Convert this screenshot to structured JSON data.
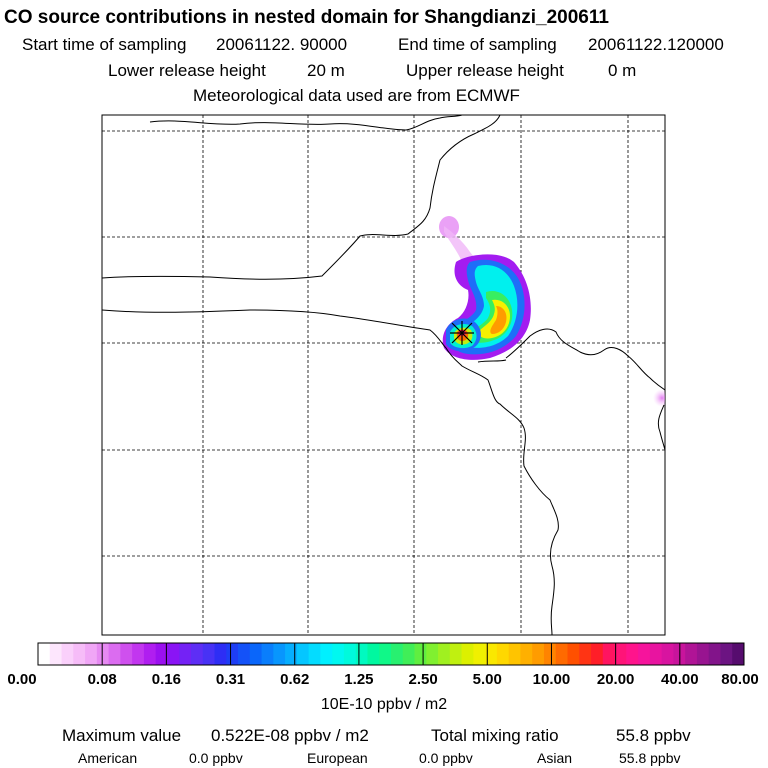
{
  "title": "CO  source contributions in nested domain for Shangdianzi_200611",
  "header": {
    "start_label": "Start time of sampling",
    "start_value": "20061122. 90000",
    "end_label": "End time of sampling",
    "end_value": "20061122.120000",
    "lower_label": "Lower release height",
    "lower_value": "20 m",
    "upper_label": "Upper release height",
    "upper_value": "0 m",
    "met_text": "Meteorological data used are from ECMWF"
  },
  "colorbar": {
    "ticks": [
      "0.00",
      "0.08",
      "0.16",
      "0.31",
      "0.62",
      "1.25",
      "2.50",
      "5.00",
      "10.00",
      "20.00",
      "40.00",
      "80.00"
    ],
    "units": "10E-10 ppbv / m2",
    "colors": [
      "#ffffff",
      "#fde6fd",
      "#fad0fb",
      "#f6bcf8",
      "#f0a6f6",
      "#e68af2",
      "#db6cf0",
      "#cf50ee",
      "#c236ef",
      "#b01ef0",
      "#9b10f0",
      "#8a14f5",
      "#7422f5",
      "#5e2ef5",
      "#4832f5",
      "#2e2ef5",
      "#1e3ef5",
      "#1452f8",
      "#0a66fa",
      "#0a7efc",
      "#0896fd",
      "#06aefe",
      "#05c6ff",
      "#04dcff",
      "#00f0ff",
      "#00f8f0",
      "#00fadc",
      "#00fac0",
      "#00f8a0",
      "#10f888",
      "#28f070",
      "#40ee58",
      "#60ee40",
      "#80f030",
      "#a0f020",
      "#c0f010",
      "#dcf000",
      "#f0f000",
      "#fae800",
      "#ffd800",
      "#ffc400",
      "#ffb000",
      "#ff9c00",
      "#ff8400",
      "#ff6a00",
      "#ff5000",
      "#ff3414",
      "#ff1e28",
      "#ff1460",
      "#ff1478",
      "#ff148c",
      "#f6149c",
      "#e814a0",
      "#d814a0",
      "#c8149c",
      "#b01496",
      "#981490",
      "#82148a",
      "#6c1482",
      "#560c6e"
    ]
  },
  "footer": {
    "max_label": "Maximum value",
    "max_value": "0.522E-08 ppbv / m2",
    "total_label": "Total mixing ratio",
    "total_value": "55.8 ppbv",
    "american_label": "American",
    "american_value": "0.0 ppbv",
    "european_label": "European",
    "european_value": "0.0 ppbv",
    "asian_label": "Asian",
    "asian_value": "55.8 ppbv"
  }
}
